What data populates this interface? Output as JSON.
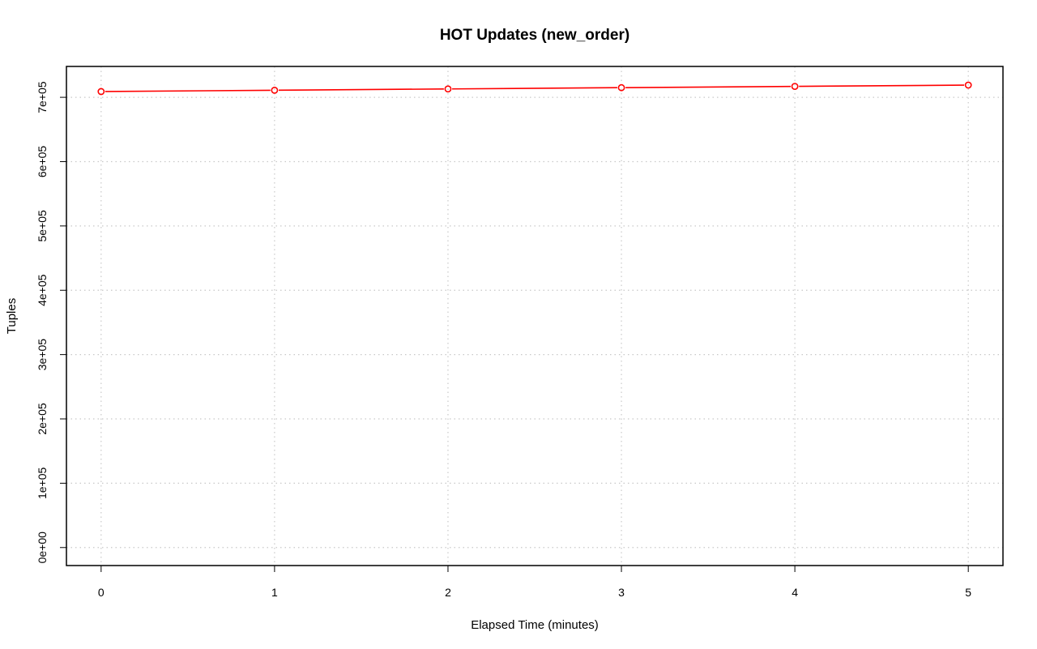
{
  "chart_data": {
    "type": "line",
    "title": "HOT Updates (new_order)",
    "xlabel": "Elapsed Time (minutes)",
    "ylabel": "Tuples",
    "x": [
      0,
      1,
      2,
      3,
      4,
      5
    ],
    "series": [
      {
        "values": [
          709000,
          711000,
          713000,
          715000,
          717000,
          719000
        ],
        "color": "#ff0000",
        "marker": "open-circle"
      }
    ],
    "xticks": [
      "0",
      "1",
      "2",
      "3",
      "4",
      "5"
    ],
    "yticks": [
      "0e+00",
      "1e+05",
      "2e+05",
      "3e+05",
      "4e+05",
      "5e+05",
      "6e+05",
      "7e+05"
    ],
    "xlim": [
      -0.2,
      5.2
    ],
    "ylim": [
      -28000,
      748000
    ],
    "grid": true
  }
}
